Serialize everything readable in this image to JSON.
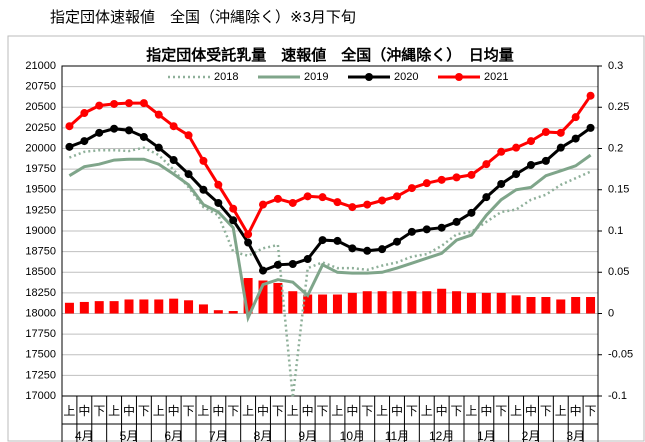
{
  "header": "指定団体速報値　全国（沖縄除く）※3月下旬",
  "chart_data": {
    "type": "combo",
    "title": "指定団体受託乳量　速報値　全国（沖縄除く）　日均量",
    "categories": [
      "上",
      "中",
      "下",
      "上",
      "中",
      "下",
      "上",
      "中",
      "下",
      "上",
      "中",
      "下",
      "上",
      "中",
      "下",
      "上",
      "中",
      "下",
      "上",
      "中",
      "下",
      "上",
      "中",
      "下",
      "上",
      "中",
      "下",
      "上",
      "中",
      "下",
      "上",
      "中",
      "下",
      "上",
      "中",
      "下"
    ],
    "month_labels": [
      "4月",
      "5月",
      "6月",
      "7月",
      "8月",
      "9月",
      "10月",
      "11月",
      "12月",
      "1月",
      "2月",
      "3月"
    ],
    "ylim": [
      17000,
      21000
    ],
    "yticks": [
      17000,
      17250,
      17500,
      17750,
      18000,
      18250,
      18500,
      18750,
      19000,
      19250,
      19500,
      19750,
      20000,
      20250,
      20500,
      20750,
      21000
    ],
    "y2lim": [
      -0.1,
      0.3
    ],
    "y2ticks": [
      -0.1,
      -0.05,
      0,
      0.05,
      0.1,
      0.15,
      0.2,
      0.25,
      0.3
    ],
    "grid": true,
    "legend": "top",
    "bar_series": {
      "color": "#ff0000",
      "axis": "y2",
      "values": [
        0.013,
        0.014,
        0.015,
        0.015,
        0.017,
        0.017,
        0.017,
        0.018,
        0.016,
        0.011,
        0.004,
        0.003,
        0.043,
        0.04,
        0.037,
        0.027,
        0.023,
        0.023,
        0.023,
        0.025,
        0.027,
        0.027,
        0.027,
        0.027,
        0.027,
        0.03,
        0.027,
        0.025,
        0.025,
        0.025,
        0.022,
        0.02,
        0.02,
        0.017,
        0.02,
        0.02
      ]
    },
    "series": [
      {
        "name": "2018",
        "color": "#8fb09a",
        "style": "dotted",
        "marker": false,
        "values": [
          19890,
          19960,
          19980,
          19980,
          19970,
          20010,
          19920,
          19740,
          19530,
          19290,
          19190,
          18750,
          18700,
          18790,
          18830,
          16980,
          18550,
          18620,
          18550,
          18550,
          18530,
          18580,
          18620,
          18690,
          18720,
          18820,
          18960,
          18990,
          19110,
          19230,
          19260,
          19380,
          19440,
          19560,
          19640,
          19720
        ]
      },
      {
        "name": "2019",
        "color": "#7fa58a",
        "style": "solid",
        "marker": false,
        "values": [
          19670,
          19780,
          19810,
          19860,
          19870,
          19870,
          19810,
          19690,
          19560,
          19320,
          19230,
          19040,
          17950,
          18350,
          18410,
          18380,
          18220,
          18590,
          18500,
          18490,
          18490,
          18500,
          18550,
          18610,
          18670,
          18730,
          18890,
          18950,
          19190,
          19380,
          19500,
          19530,
          19670,
          19730,
          19790,
          19920
        ]
      },
      {
        "name": "2020",
        "color": "#000000",
        "style": "solid",
        "marker": true,
        "values": [
          20020,
          20090,
          20190,
          20240,
          20220,
          20140,
          20010,
          19860,
          19690,
          19500,
          19340,
          19130,
          18860,
          18520,
          18590,
          18600,
          18660,
          18890,
          18880,
          18790,
          18760,
          18780,
          18870,
          18990,
          19020,
          19040,
          19110,
          19220,
          19410,
          19570,
          19690,
          19800,
          19850,
          20010,
          20120,
          20250
        ]
      },
      {
        "name": "2021",
        "color": "#ff0000",
        "style": "solid",
        "marker": true,
        "values": [
          20270,
          20430,
          20520,
          20540,
          20550,
          20550,
          20410,
          20270,
          20160,
          19850,
          19560,
          19270,
          18960,
          19320,
          19390,
          19340,
          19420,
          19410,
          19350,
          19290,
          19320,
          19370,
          19420,
          19520,
          19580,
          19620,
          19650,
          19680,
          19810,
          19960,
          20010,
          20090,
          20200,
          20190,
          20380,
          20640
        ]
      }
    ]
  }
}
